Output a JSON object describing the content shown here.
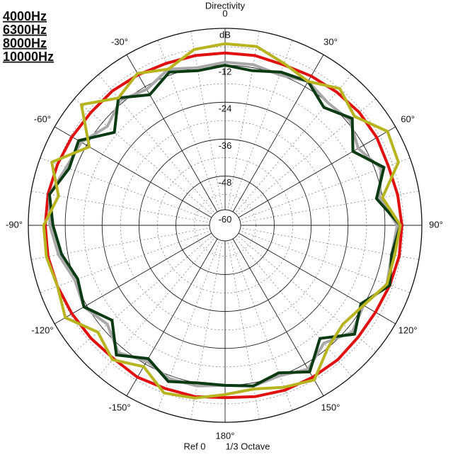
{
  "chart_data": {
    "type": "polar",
    "title": "Directivity",
    "r_unit": "dB",
    "footer": [
      "Ref 0",
      "1/3 Octave"
    ],
    "rlim": [
      -64,
      0
    ],
    "rticks": [
      -60,
      -48,
      -36,
      -24,
      -12
    ],
    "thetaticks": [
      0,
      {
        "value": 30,
        "label": "30°"
      },
      {
        "value": 60,
        "label": "60°"
      },
      {
        "value": 90,
        "label": "90°"
      },
      {
        "value": 120,
        "label": "120°"
      },
      {
        "value": 150,
        "label": "150°"
      },
      {
        "value": 180,
        "label": "180°"
      },
      {
        "value": -150,
        "label": "-150°"
      },
      {
        "value": -120,
        "label": "-120°"
      },
      {
        "value": -90,
        "label": "-90°"
      },
      {
        "value": -60,
        "label": "-60°"
      },
      {
        "value": -30,
        "label": "-30°"
      }
    ],
    "theta": [
      0,
      10,
      20,
      30,
      40,
      50,
      60,
      70,
      80,
      90,
      100,
      110,
      120,
      130,
      140,
      150,
      160,
      170,
      180,
      190,
      200,
      210,
      220,
      230,
      240,
      250,
      260,
      270,
      280,
      290,
      300,
      310,
      320,
      330,
      340,
      350
    ],
    "series": [
      {
        "name": "4000Hz",
        "color": "#e01010",
        "values": [
          -8,
          -8,
          -8.5,
          -8,
          -7.5,
          -7,
          -7,
          -7.5,
          -7,
          -6.5,
          -6.5,
          -7,
          -7.5,
          -7.5,
          -7,
          -7,
          -7,
          -7.5,
          -8,
          -7.5,
          -7.5,
          -7,
          -7.5,
          -7,
          -6.5,
          -6,
          -5.5,
          -5.5,
          -5.5,
          -6,
          -6.5,
          -7,
          -7,
          -7.5,
          -8,
          -8
        ]
      },
      {
        "name": "6300Hz",
        "color": "#a8a8a8",
        "values": [
          -11,
          -11,
          -12,
          -10,
          -12,
          -11,
          -14,
          -10,
          -13,
          -8,
          -9,
          -8,
          -12,
          -10,
          -14,
          -10,
          -12,
          -11,
          -12,
          -11,
          -11,
          -13,
          -10,
          -14,
          -11,
          -12,
          -9,
          -7,
          -6,
          -9,
          -10,
          -14,
          -11,
          -13,
          -10,
          -12
        ]
      },
      {
        "name": "8000Hz",
        "color": "#0a3a12",
        "values": [
          -12,
          -13,
          -11,
          -10,
          -14,
          -10,
          -16,
          -9,
          -14,
          -7,
          -9,
          -7,
          -13,
          -9,
          -16,
          -9,
          -13,
          -11,
          -12,
          -12,
          -10,
          -14,
          -9,
          -16,
          -11,
          -13,
          -10,
          -8,
          -6,
          -10,
          -9,
          -17,
          -10,
          -15,
          -11,
          -13
        ]
      },
      {
        "name": "10000Hz",
        "color": "#b8b420",
        "values": [
          -5,
          -5,
          -8,
          -10,
          -6,
          -9,
          -3,
          -4,
          -12,
          -7,
          -8,
          -8,
          -12,
          -14,
          -12,
          -6,
          -8,
          -10,
          -9,
          -7,
          -6,
          -11,
          -7,
          -10,
          -4,
          -6,
          -5,
          -5,
          -9,
          -4,
          -13,
          -3,
          -10,
          -7,
          -10,
          -6
        ]
      }
    ]
  }
}
